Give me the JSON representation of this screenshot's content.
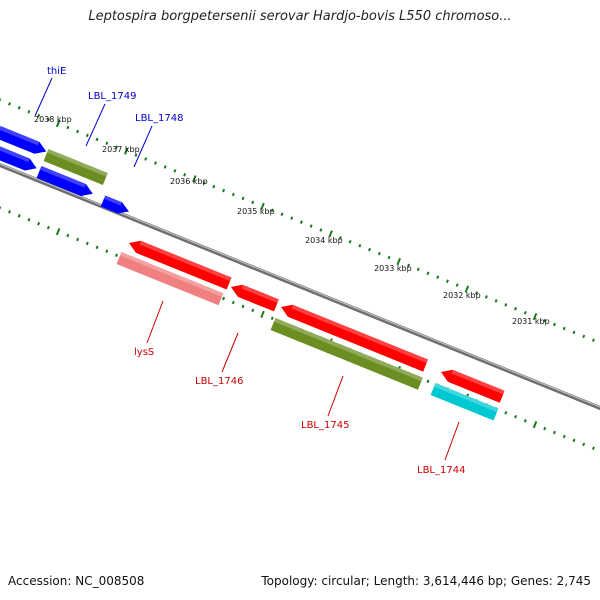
{
  "title": "Leptospira borgpetersenii serovar Hardjo-bovis L550 chromoso...",
  "footer": {
    "accession": "Accession: NC_008508",
    "summary": "Topology: circular; Length: 3,614,446 bp; Genes: 2,745"
  },
  "ticks": [
    "2038 kbp",
    "2037 kbp",
    "2036 kbp",
    "2035 kbp",
    "2034 kbp",
    "2033 kbp",
    "2032 kbp",
    "2031 kbp"
  ],
  "genes": [
    {
      "label": "thiE",
      "strand": "top",
      "color": "#0000ff"
    },
    {
      "label": "LBL_1749",
      "strand": "top",
      "color": "#0000ff"
    },
    {
      "label": "LBL_1748",
      "strand": "top",
      "color": "#0000ff"
    },
    {
      "label": "lysS",
      "strand": "bottom",
      "color": "#cc0000"
    },
    {
      "label": "LBL_1746",
      "strand": "bottom",
      "color": "#cc0000"
    },
    {
      "label": "LBL_1745",
      "strand": "bottom",
      "color": "#cc0000"
    },
    {
      "label": "LBL_1744",
      "strand": "bottom",
      "color": "#cc0000"
    }
  ],
  "colors": {
    "blue": "#0000ff",
    "red": "#ff0000",
    "olive": "#6b8e23",
    "salmon": "#f08080",
    "cyan": "#00c8d2",
    "backbone": "#808080",
    "tick": "#1a7a1a"
  }
}
